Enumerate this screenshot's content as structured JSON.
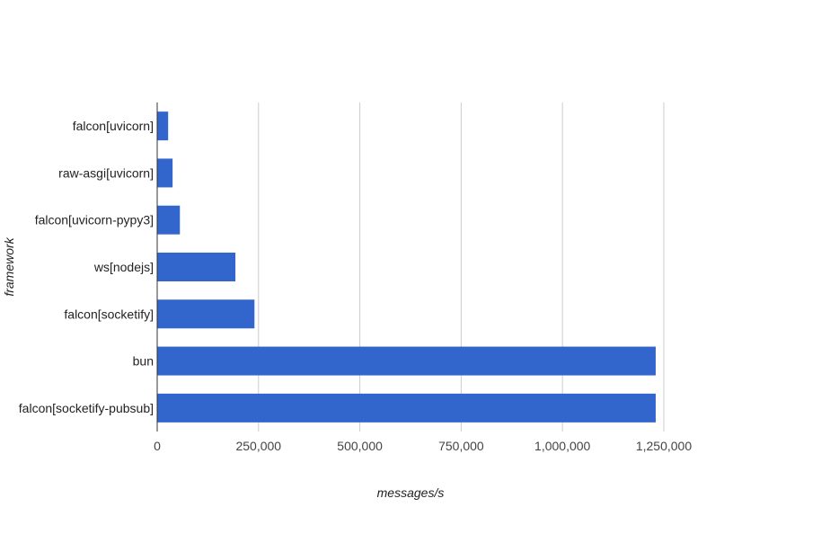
{
  "chart_data": {
    "type": "bar",
    "orientation": "horizontal",
    "categories": [
      "falcon[uvicorn]",
      "raw-asgi[uvicorn]",
      "falcon[uvicorn-pypy3]",
      "ws[nodejs]",
      "falcon[socketify]",
      "bun",
      "falcon[socketify-pubsub]"
    ],
    "values": [
      27000,
      38000,
      56000,
      193000,
      240000,
      1230000,
      1230000
    ],
    "xlabel": "messages/s",
    "ylabel": "framework",
    "xlim": [
      0,
      1250000
    ],
    "xticks": [
      0,
      250000,
      500000,
      750000,
      1000000,
      1250000
    ],
    "xtick_labels": [
      "0",
      "250,000",
      "500,000",
      "750,000",
      "1,000,000",
      "1,250,000"
    ],
    "grid": true,
    "bar_color": "#3366cc"
  }
}
